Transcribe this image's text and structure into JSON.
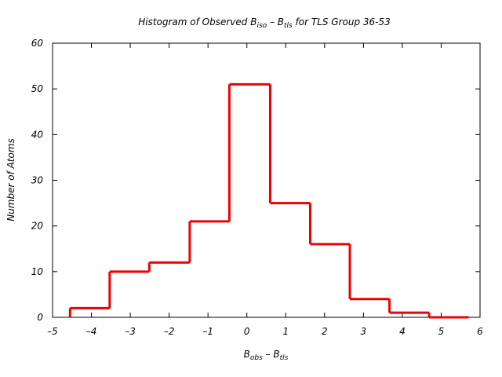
{
  "chart_data": {
    "type": "histogram",
    "title": {
      "prefix": "Histogram of Observed B",
      "sub1": "iso",
      "middle": " – B",
      "sub2": "tls",
      "suffix": "  for TLS Group 36-53"
    },
    "xlabel": {
      "b1": "B",
      "s1": "obs",
      "mid": " – B",
      "s2": "tls"
    },
    "ylabel": "Number of Atoms",
    "xlim": [
      -5,
      6
    ],
    "ylim": [
      0,
      60
    ],
    "xticks": [
      -5,
      -4,
      -3,
      -2,
      -1,
      0,
      1,
      2,
      3,
      4,
      5,
      6
    ],
    "xtick_labels": [
      "–5",
      "–4",
      "–3",
      "–2",
      "–1",
      "0",
      "1",
      "2",
      "3",
      "4",
      "5",
      "6"
    ],
    "yticks": [
      0,
      10,
      20,
      30,
      40,
      50,
      60
    ],
    "ytick_labels": [
      "0",
      "10",
      "20",
      "30",
      "40",
      "50",
      "60"
    ],
    "bin_edges": [
      -4.55,
      -3.53,
      -2.51,
      -1.47,
      -0.45,
      0.6,
      1.63,
      2.65,
      3.67,
      4.69,
      5.71
    ],
    "counts": [
      2,
      10,
      12,
      21,
      51,
      25,
      16,
      4,
      1,
      0
    ],
    "grid": false,
    "line_color": "#ee0000"
  }
}
